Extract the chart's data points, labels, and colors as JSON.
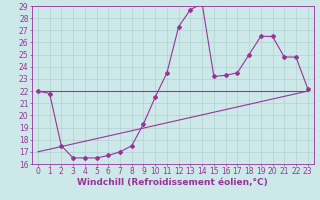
{
  "xlabel": "Windchill (Refroidissement éolien,°C)",
  "background_color": "#cde8e8",
  "grid_color": "#aacccc",
  "line_color": "#993399",
  "xlim": [
    -0.5,
    23.5
  ],
  "ylim": [
    16,
    29
  ],
  "yticks": [
    16,
    17,
    18,
    19,
    20,
    21,
    22,
    23,
    24,
    25,
    26,
    27,
    28,
    29
  ],
  "xticks": [
    0,
    1,
    2,
    3,
    4,
    5,
    6,
    7,
    8,
    9,
    10,
    11,
    12,
    13,
    14,
    15,
    16,
    17,
    18,
    19,
    20,
    21,
    22,
    23
  ],
  "series": [
    {
      "x": [
        0,
        23
      ],
      "y": [
        22,
        22
      ],
      "marker": false
    },
    {
      "x": [
        0,
        23
      ],
      "y": [
        17,
        22
      ],
      "marker": false
    },
    {
      "x": [
        0,
        1,
        2,
        3,
        4,
        5,
        6,
        7,
        8,
        9,
        10,
        11,
        12,
        13,
        14,
        15,
        16,
        17,
        18,
        19,
        20,
        21,
        22,
        23
      ],
      "y": [
        22,
        21.8,
        17.5,
        16.5,
        16.5,
        16.5,
        16.7,
        17.0,
        17.5,
        19.3,
        21.5,
        23.5,
        27.3,
        28.7,
        29.2,
        23.2,
        23.3,
        23.5,
        25.0,
        26.5,
        26.5,
        24.8,
        24.8,
        22.2
      ],
      "marker": true
    }
  ],
  "spine_color": "#993399",
  "tick_label_fontsize": 5.5,
  "xlabel_fontsize": 6.5
}
